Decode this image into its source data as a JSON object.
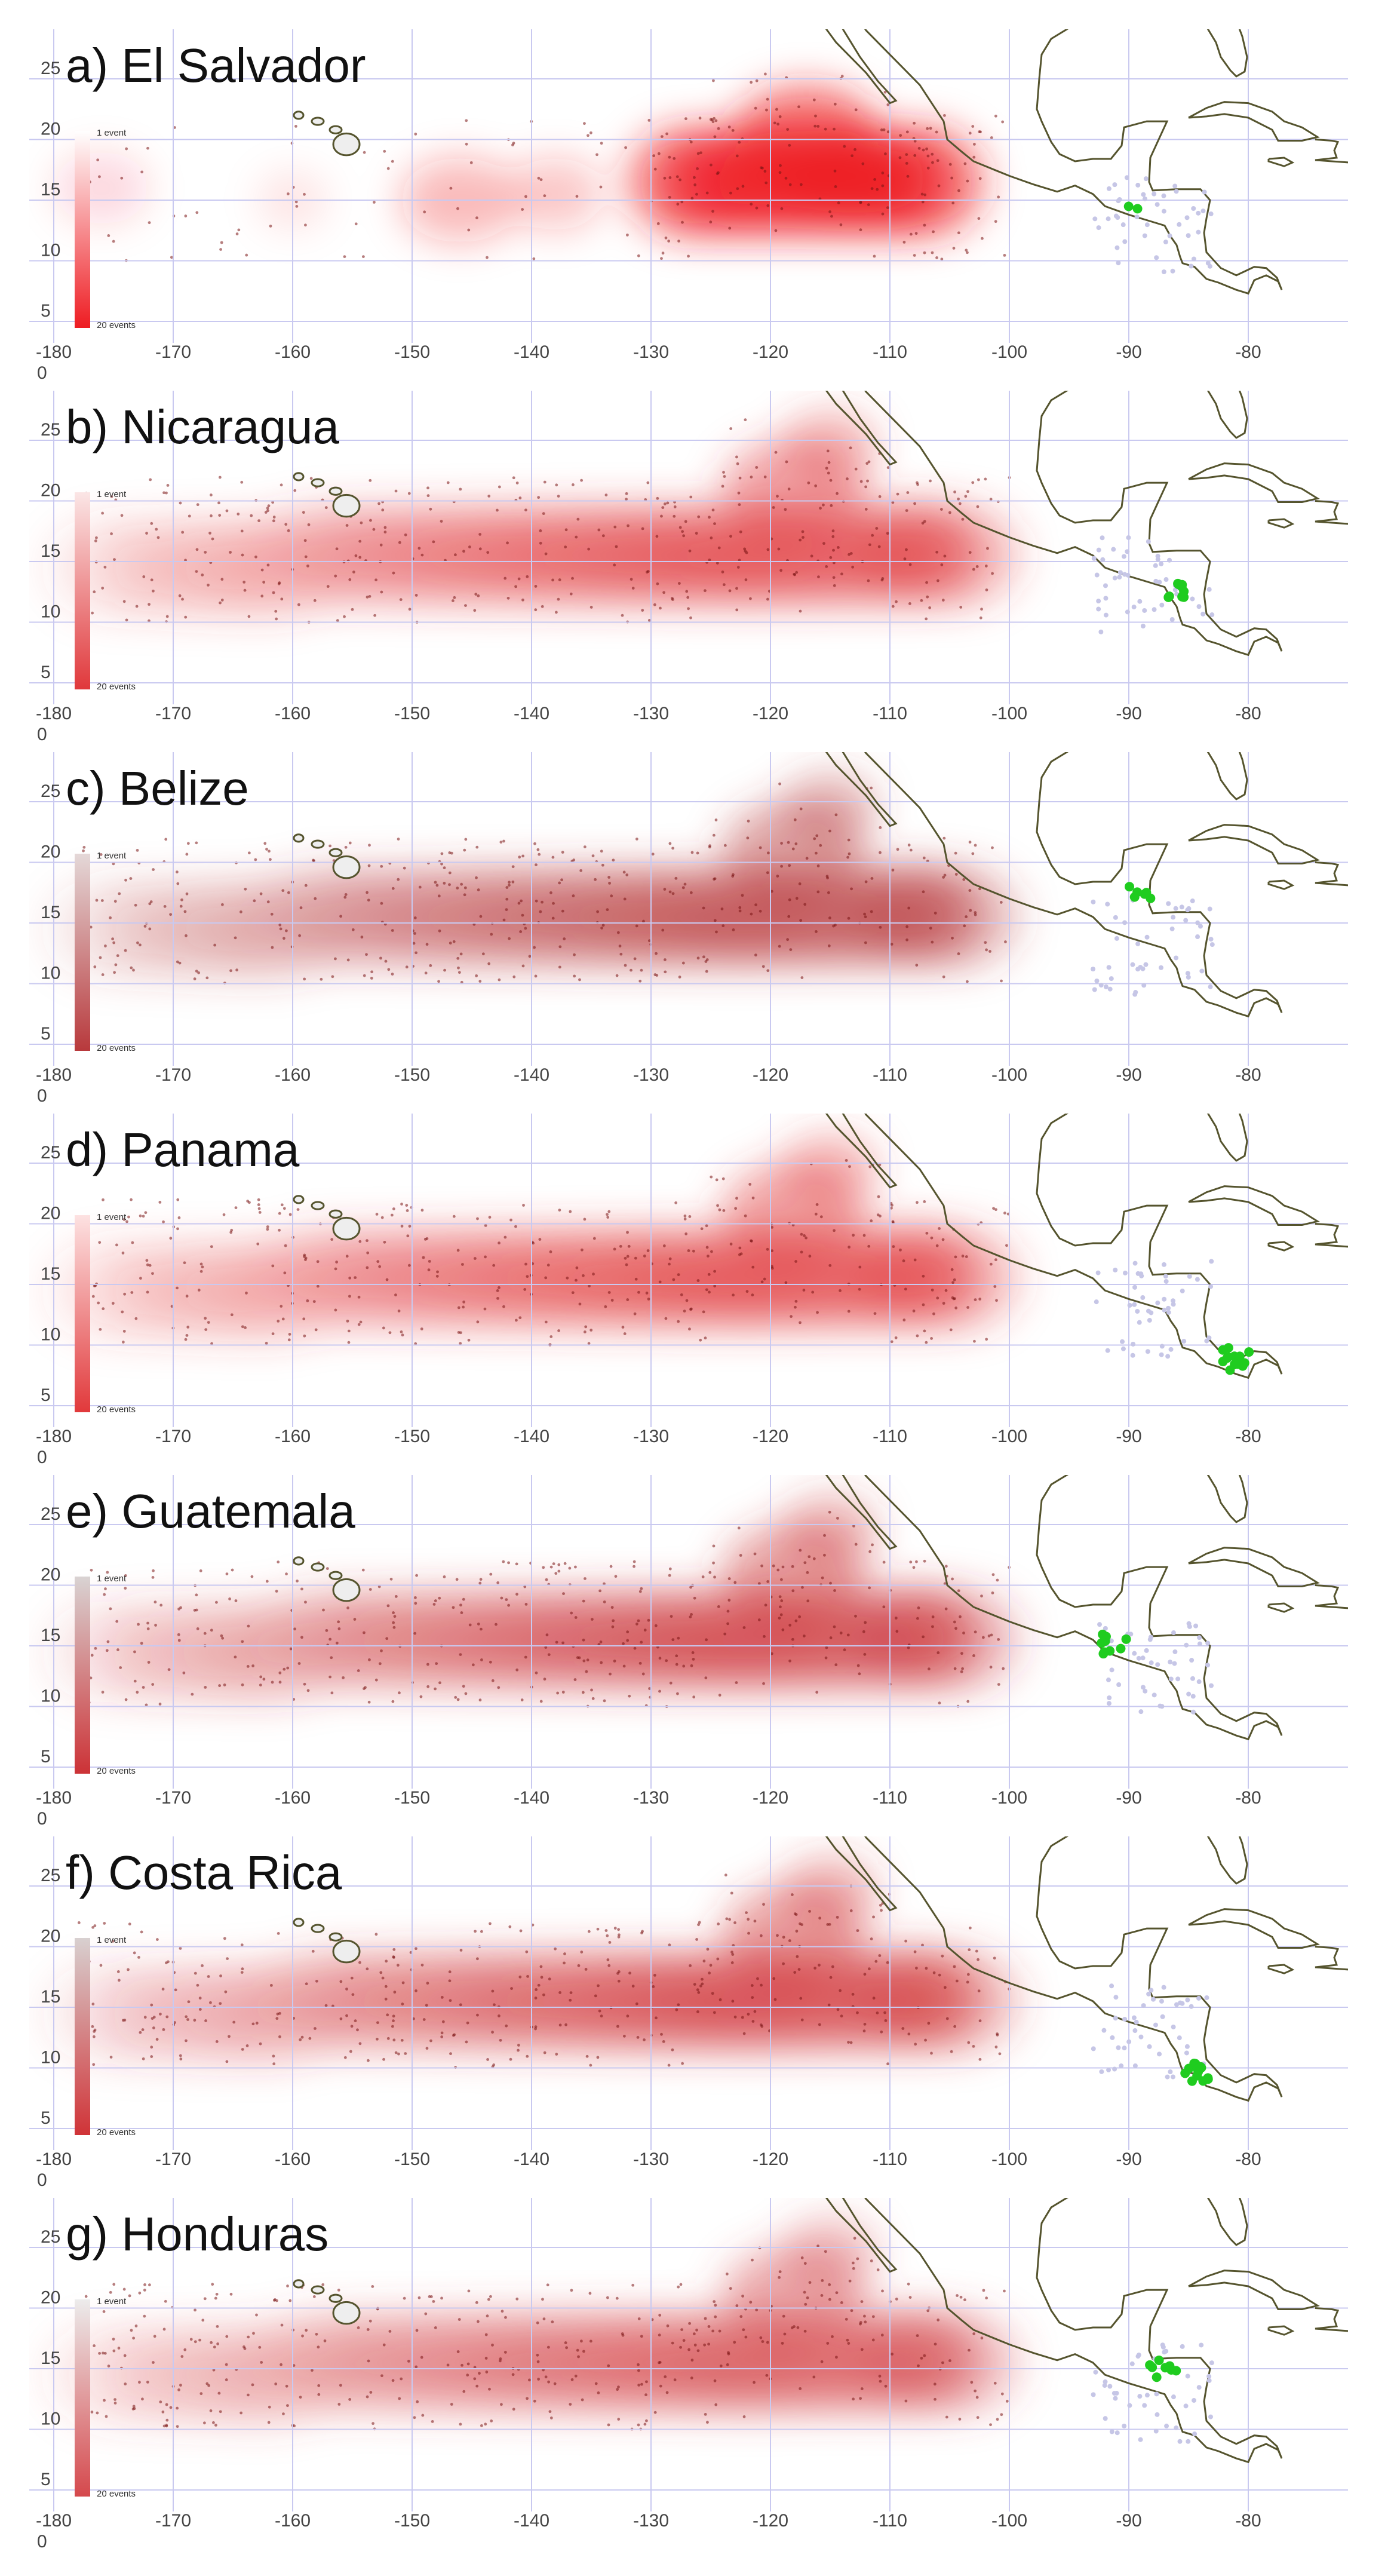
{
  "panels": [
    {
      "title": "a) El Salvador",
      "scale_colors": [
        "#ffffff",
        "#ee1c22"
      ]
    },
    {
      "title": "b) Nicaragua",
      "scale_colors": [
        "#fbe6e6",
        "#e0383b"
      ]
    },
    {
      "title": "c) Belize",
      "scale_colors": [
        "#e4d8d8",
        "#b8393c"
      ]
    },
    {
      "title": "d) Panama",
      "scale_colors": [
        "#fde2e2",
        "#e1393b"
      ]
    },
    {
      "title": "e) Guatemala",
      "scale_colors": [
        "#d9d3d3",
        "#cc3236"
      ]
    },
    {
      "title": "f) Costa Rica",
      "scale_colors": [
        "#d8d0d0",
        "#d03337"
      ]
    },
    {
      "title": "g) Honduras",
      "scale_colors": [
        "#ececec",
        "#d5484c"
      ]
    }
  ],
  "legend": {
    "low": "1 event",
    "high": "20 events"
  },
  "lon_ticks": [
    -180,
    -170,
    -160,
    -150,
    -140,
    -130,
    -120,
    -110,
    -100,
    -90,
    -80
  ],
  "lat_ticks": [
    25,
    20,
    15,
    10,
    5
  ],
  "corner_label": 0
}
